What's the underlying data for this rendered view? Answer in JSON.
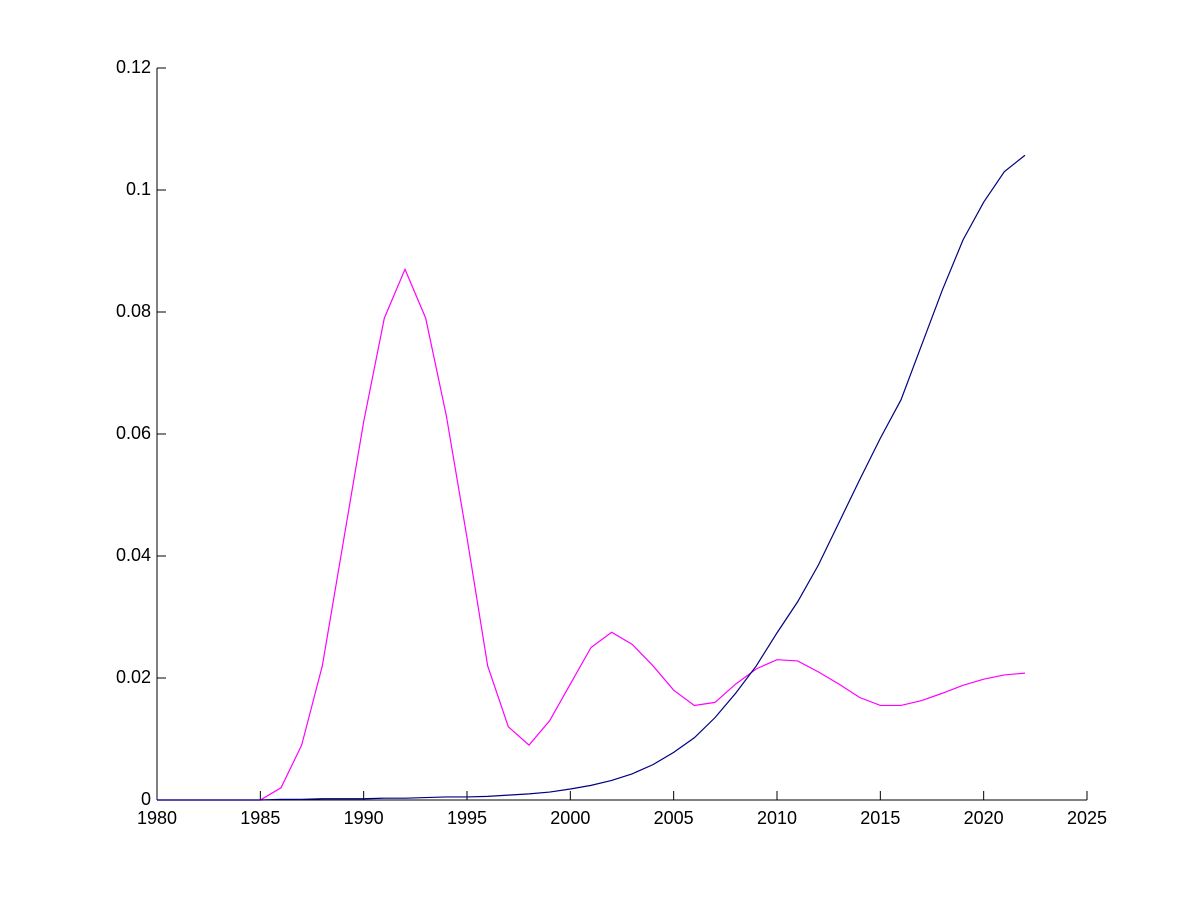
{
  "chart_data": {
    "type": "line",
    "x": [
      1980,
      1981,
      1982,
      1983,
      1984,
      1985,
      1986,
      1987,
      1988,
      1989,
      1990,
      1991,
      1992,
      1993,
      1994,
      1995,
      1996,
      1997,
      1998,
      1999,
      2000,
      2001,
      2002,
      2003,
      2004,
      2005,
      2006,
      2007,
      2008,
      2009,
      2010,
      2011,
      2012,
      2013,
      2014,
      2015,
      2016,
      2017,
      2018,
      2019,
      2020,
      2021,
      2022
    ],
    "series": [
      {
        "color": "#ff00ff",
        "values": [
          0,
          0,
          0,
          0,
          0,
          0,
          0.002,
          0.009,
          0.022,
          0.042,
          0.062,
          0.079,
          0.087,
          0.079,
          0.063,
          0.043,
          0.022,
          0.012,
          0.009,
          0.013,
          0.019,
          0.025,
          0.0275,
          0.0255,
          0.022,
          0.018,
          0.0155,
          0.016,
          0.019,
          0.0215,
          0.023,
          0.0228,
          0.021,
          0.019,
          0.0168,
          0.0155,
          0.0155,
          0.0163,
          0.0175,
          0.0188,
          0.0198,
          0.0205,
          0.0208
        ]
      },
      {
        "color": "#000080",
        "values": [
          0,
          0,
          0,
          0,
          0,
          0,
          0.0001,
          0.0001,
          0.0002,
          0.0002,
          0.0002,
          0.0003,
          0.0003,
          0.0004,
          0.0005,
          0.0005,
          0.0006,
          0.0008,
          0.001,
          0.0013,
          0.0018,
          0.0024,
          0.0032,
          0.0043,
          0.0058,
          0.0078,
          0.0102,
          0.0135,
          0.0175,
          0.022,
          0.0274,
          0.0325,
          0.0385,
          0.0455,
          0.0525,
          0.0593,
          0.0656,
          0.0746,
          0.0836,
          0.0918,
          0.098,
          0.103,
          0.1057
        ]
      }
    ],
    "xlim": [
      1980,
      2025
    ],
    "xticks": [
      1980,
      1985,
      1990,
      1995,
      2000,
      2005,
      2010,
      2015,
      2020,
      2025
    ],
    "ylim": [
      0,
      0.12
    ],
    "yticks": [
      0,
      0.02,
      0.04,
      0.06,
      0.08,
      0.1,
      0.12
    ]
  }
}
